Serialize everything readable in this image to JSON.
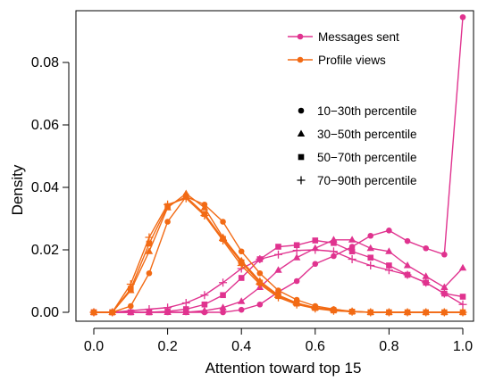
{
  "chart_data": {
    "type": "line",
    "title": "",
    "xlabel": "Attention toward top 15",
    "ylabel": "Density",
    "xlim": [
      0,
      1
    ],
    "ylim": [
      0,
      0.1
    ],
    "xticks": [
      "0.0",
      "0.2",
      "0.4",
      "0.6",
      "0.8",
      "1.0"
    ],
    "yticks": [
      "0.00",
      "0.02",
      "0.04",
      "0.06",
      "0.08"
    ],
    "grid": false,
    "legend_placement": "top-right",
    "x": [
      0,
      0.05,
      0.1,
      0.15,
      0.2,
      0.25,
      0.3,
      0.35,
      0.4,
      0.45,
      0.5,
      0.55,
      0.6,
      0.65,
      0.7,
      0.75,
      0.8,
      0.85,
      0.9,
      0.95,
      1.0
    ],
    "metric_legend": [
      {
        "label": "Messages sent",
        "color": "#e0338f"
      },
      {
        "label": "Profile views",
        "color": "#f26a14"
      }
    ],
    "marker_legend": [
      {
        "label": "10−30th percentile",
        "marker": "circle"
      },
      {
        "label": "30−50th percentile",
        "marker": "triangle"
      },
      {
        "label": "50−70th percentile",
        "marker": "square"
      },
      {
        "label": "70−90th percentile",
        "marker": "plus"
      }
    ],
    "series": [
      {
        "metric": "Messages sent",
        "percentile": "10−30th percentile",
        "marker": "circle",
        "color": "#e0338f",
        "values": [
          0,
          0,
          0,
          0,
          0,
          0,
          0,
          0,
          0.0008,
          0.0025,
          0.0065,
          0.01,
          0.0155,
          0.018,
          0.021,
          0.0245,
          0.0262,
          0.0228,
          0.0205,
          0.0185,
          0.0945
        ]
      },
      {
        "metric": "Messages sent",
        "percentile": "30−50th percentile",
        "marker": "triangle",
        "color": "#e0338f",
        "values": [
          0,
          0,
          0,
          0,
          0,
          0,
          0.0005,
          0.0015,
          0.0035,
          0.008,
          0.0135,
          0.0175,
          0.0205,
          0.0232,
          0.0232,
          0.0205,
          0.0195,
          0.015,
          0.0115,
          0.008,
          0.0142
        ]
      },
      {
        "metric": "Messages sent",
        "percentile": "50−70th percentile",
        "marker": "square",
        "color": "#e0338f",
        "values": [
          0,
          0,
          0,
          0,
          0.0003,
          0.001,
          0.0025,
          0.0055,
          0.011,
          0.017,
          0.021,
          0.0215,
          0.023,
          0.0222,
          0.0195,
          0.0175,
          0.015,
          0.012,
          0.0095,
          0.006,
          0.005
        ]
      },
      {
        "metric": "Messages sent",
        "percentile": "70−90th percentile",
        "marker": "plus",
        "color": "#e0338f",
        "values": [
          0,
          0,
          0.0005,
          0.001,
          0.0015,
          0.003,
          0.0055,
          0.0095,
          0.014,
          0.017,
          0.0185,
          0.0198,
          0.02,
          0.0195,
          0.017,
          0.015,
          0.0135,
          0.012,
          0.0095,
          0.006,
          0.0025
        ]
      },
      {
        "metric": "Profile views",
        "percentile": "10−30th percentile",
        "marker": "circle",
        "color": "#f26a14",
        "values": [
          0,
          0,
          0.002,
          0.0125,
          0.029,
          0.037,
          0.0345,
          0.029,
          0.0195,
          0.0125,
          0.007,
          0.004,
          0.002,
          0.001,
          0.0003,
          0,
          0,
          0,
          0,
          0,
          0
        ]
      },
      {
        "metric": "Profile views",
        "percentile": "30−50th percentile",
        "marker": "triangle",
        "color": "#f26a14",
        "values": [
          0,
          0,
          0.007,
          0.0195,
          0.0335,
          0.038,
          0.0335,
          0.024,
          0.0165,
          0.01,
          0.0055,
          0.003,
          0.0015,
          0.0008,
          0.0003,
          0,
          0,
          0,
          0,
          0,
          0
        ]
      },
      {
        "metric": "Profile views",
        "percentile": "50−70th percentile",
        "marker": "square",
        "color": "#f26a14",
        "values": [
          0,
          0,
          0.0075,
          0.022,
          0.034,
          0.037,
          0.0315,
          0.0235,
          0.016,
          0.0095,
          0.0052,
          0.0028,
          0.0014,
          0.0006,
          0.0002,
          0,
          0,
          0,
          0,
          0,
          0
        ]
      },
      {
        "metric": "Profile views",
        "percentile": "70−90th percentile",
        "marker": "plus",
        "color": "#f26a14",
        "values": [
          0,
          0,
          0.009,
          0.024,
          0.0345,
          0.0365,
          0.031,
          0.023,
          0.015,
          0.009,
          0.0048,
          0.0025,
          0.0012,
          0.0005,
          0.0002,
          0,
          0,
          0,
          0,
          0,
          0
        ]
      }
    ]
  }
}
